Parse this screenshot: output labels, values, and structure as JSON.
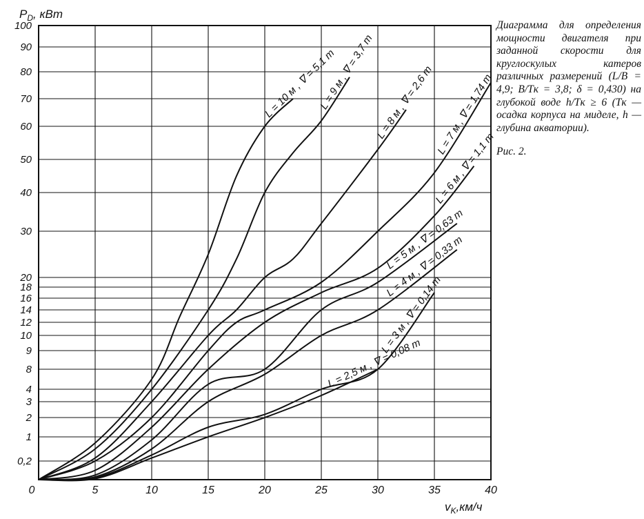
{
  "chart_data": {
    "type": "line",
    "ylabel": "P_D, кВт",
    "xlabel": "v_к, км/ч",
    "y_scale": "nonuniform (from tick labels)",
    "xlim": [
      0,
      40
    ],
    "x_ticks": [
      "0",
      "5",
      "10",
      "15",
      "20",
      "25",
      "30",
      "35",
      "40"
    ],
    "y_ticks": [
      "0,2",
      "1",
      "2",
      "3",
      "4",
      "8",
      "9",
      "10",
      "12",
      "14",
      "16",
      "18",
      "20",
      "30",
      "40",
      "50",
      "60",
      "70",
      "80",
      "90",
      "100"
    ],
    "grid": true,
    "legend": "labels placed along curves",
    "series": [
      {
        "name": "L = 10 м , ∇ = 5,1 т",
        "x": [
          0,
          5,
          10,
          12.5,
          15,
          17.5,
          20,
          22.5
        ],
        "y": [
          0,
          0.8,
          6,
          13,
          25,
          45,
          60,
          70
        ]
      },
      {
        "name": "L = 9 м , ∇ = 3,7 т",
        "x": [
          0,
          5,
          10,
          15,
          17.5,
          20,
          22.5,
          25,
          27.5
        ],
        "y": [
          0,
          0.6,
          4,
          14,
          24,
          40,
          52,
          62,
          78
        ]
      },
      {
        "name": "L = 8 м , ∇ = 2,6 т",
        "x": [
          0,
          5,
          10,
          15,
          17.5,
          20,
          22.5,
          25,
          30,
          32.5
        ],
        "y": [
          0,
          0.3,
          3,
          10,
          14,
          20,
          24,
          32,
          53,
          66
        ]
      },
      {
        "name": "L = 7 м , ∇ = 1,74 т",
        "x": [
          0,
          5,
          10,
          15,
          17.5,
          20,
          25,
          30,
          35,
          40
        ],
        "y": [
          0,
          0.2,
          2,
          9,
          12,
          14,
          19,
          30,
          46,
          76
        ]
      },
      {
        "name": "L = 6 м , ∇ = 1,1 т",
        "x": [
          0,
          5,
          10,
          15,
          20,
          25,
          30,
          35,
          38.5
        ],
        "y": [
          0,
          0.1,
          1.5,
          8,
          12,
          17,
          22,
          34,
          48
        ]
      },
      {
        "name": "L = 5 м , ∇ = 0,63 т",
        "x": [
          0,
          5,
          10,
          15,
          20,
          25,
          30,
          37
        ],
        "y": [
          0,
          0.05,
          0.9,
          5,
          8,
          14,
          19,
          32
        ]
      },
      {
        "name": "L = 4 м , ∇ = 0,33 т",
        "x": [
          0,
          5,
          10,
          15,
          20,
          25,
          30,
          37
        ],
        "y": [
          0,
          0.03,
          0.6,
          3,
          7,
          10,
          14,
          26
        ]
      },
      {
        "name": "L = 3 м , ∇ = 0,14 т",
        "x": [
          0,
          5,
          10,
          15,
          20,
          25,
          30,
          35
        ],
        "y": [
          0,
          0.02,
          0.4,
          1.5,
          2.2,
          4,
          8,
          17
        ]
      },
      {
        "name": "L = 2,5 м , ∇ = 0,08 т",
        "x": [
          0,
          5,
          10,
          15,
          20,
          25,
          30
        ],
        "y": [
          0,
          0.01,
          0.3,
          1,
          2,
          3.5,
          8
        ]
      }
    ],
    "annotations": [
      "Рис. 2."
    ]
  },
  "axis": {
    "ylabel_main": "P",
    "ylabel_sub": "D",
    "ylabel_rest": ", кВт",
    "xlabel_main": "v",
    "xlabel_sub": "K",
    "xlabel_rest": ",км/ч"
  },
  "caption": {
    "text": "Диаграмма для определения мощности двигателя при заданной скорости для круглоскулых катеров различных размерений (L/B = 4,9;  B/Tк = 3,8; δ = 0,430) на глубокой воде h/Tк ≥ 6 (Tк — осадка корпуса на миделе,  h — глубина акватории).",
    "figure_label": "Рис. 2."
  }
}
